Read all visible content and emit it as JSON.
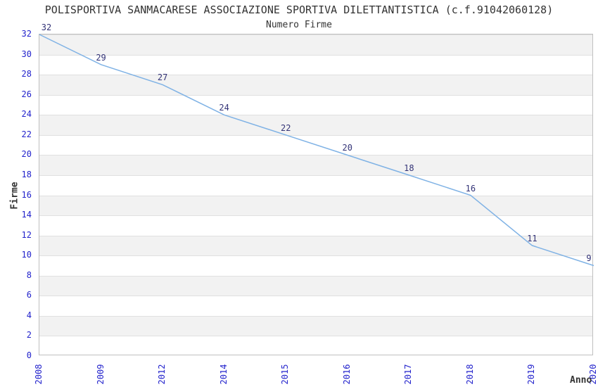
{
  "chart_data": {
    "type": "line",
    "title": "POLISPORTIVA SANMACARESE ASSOCIAZIONE SPORTIVA DILETTANTISTICA (c.f.91042060128)",
    "subtitle": "Numero Firme",
    "xlabel": "Anno",
    "ylabel": "Firme",
    "categories": [
      "2008",
      "2009",
      "2012",
      "2014",
      "2015",
      "2016",
      "2017",
      "2018",
      "2019",
      "2020"
    ],
    "values": [
      32,
      29,
      27,
      24,
      22,
      20,
      18,
      16,
      11,
      9
    ],
    "ylim": [
      0,
      32
    ],
    "ytick_step": 2,
    "xtick_rotation": -90,
    "grid": "horizontal",
    "banded_background": true,
    "legend": "none",
    "colors": {
      "line": "#7fb2e5",
      "tick_label": "#2222cc",
      "data_label": "#333377",
      "band_gray": "#f2f2f2",
      "gridline": "#e0e0e0",
      "axis_border": "#c0c0c0",
      "text": "#333333"
    }
  }
}
